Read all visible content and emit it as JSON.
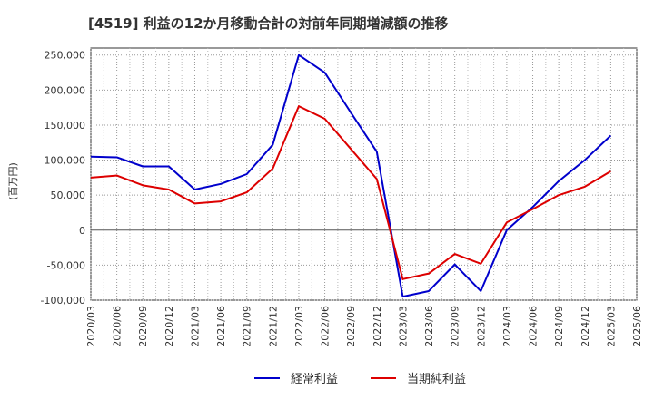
{
  "chart_data": {
    "type": "line",
    "title": "[4519]  利益の12か月移動合計の対前年同期増減額の推移",
    "ylabel": "(百万円)",
    "xlabel": "",
    "ylim": [
      -100000,
      260000
    ],
    "yticks": [
      -100000,
      -50000,
      0,
      50000,
      100000,
      150000,
      200000,
      250000
    ],
    "ytick_labels": [
      "-100,000",
      "-50,000",
      "0",
      "50,000",
      "100,000",
      "150,000",
      "200,000",
      "250,000"
    ],
    "categories": [
      "2020/03",
      "2020/06",
      "2020/09",
      "2020/12",
      "2021/03",
      "2021/06",
      "2021/09",
      "2021/12",
      "2022/03",
      "2022/06",
      "2022/09",
      "2022/12",
      "2023/03",
      "2023/06",
      "2023/09",
      "2023/12",
      "2024/03",
      "2024/06",
      "2024/09",
      "2024/12",
      "2025/03",
      "2025/06"
    ],
    "grid": true,
    "legend_position": "bottom",
    "series": [
      {
        "name": "経常利益",
        "color": "#0000cc",
        "values": [
          105000,
          104000,
          91000,
          91000,
          58000,
          66000,
          80000,
          122000,
          250000,
          225000,
          168000,
          112000,
          -95000,
          -87000,
          -49000,
          -87000,
          0,
          33000,
          70000,
          100000,
          135000,
          null
        ]
      },
      {
        "name": "当期純利益",
        "color": "#dd0000",
        "values": [
          75000,
          78000,
          64000,
          58000,
          38000,
          41000,
          54000,
          88000,
          177000,
          159000,
          116000,
          73000,
          -70000,
          -62000,
          -34000,
          -48000,
          11000,
          30000,
          50000,
          62000,
          84000,
          null
        ]
      }
    ]
  }
}
